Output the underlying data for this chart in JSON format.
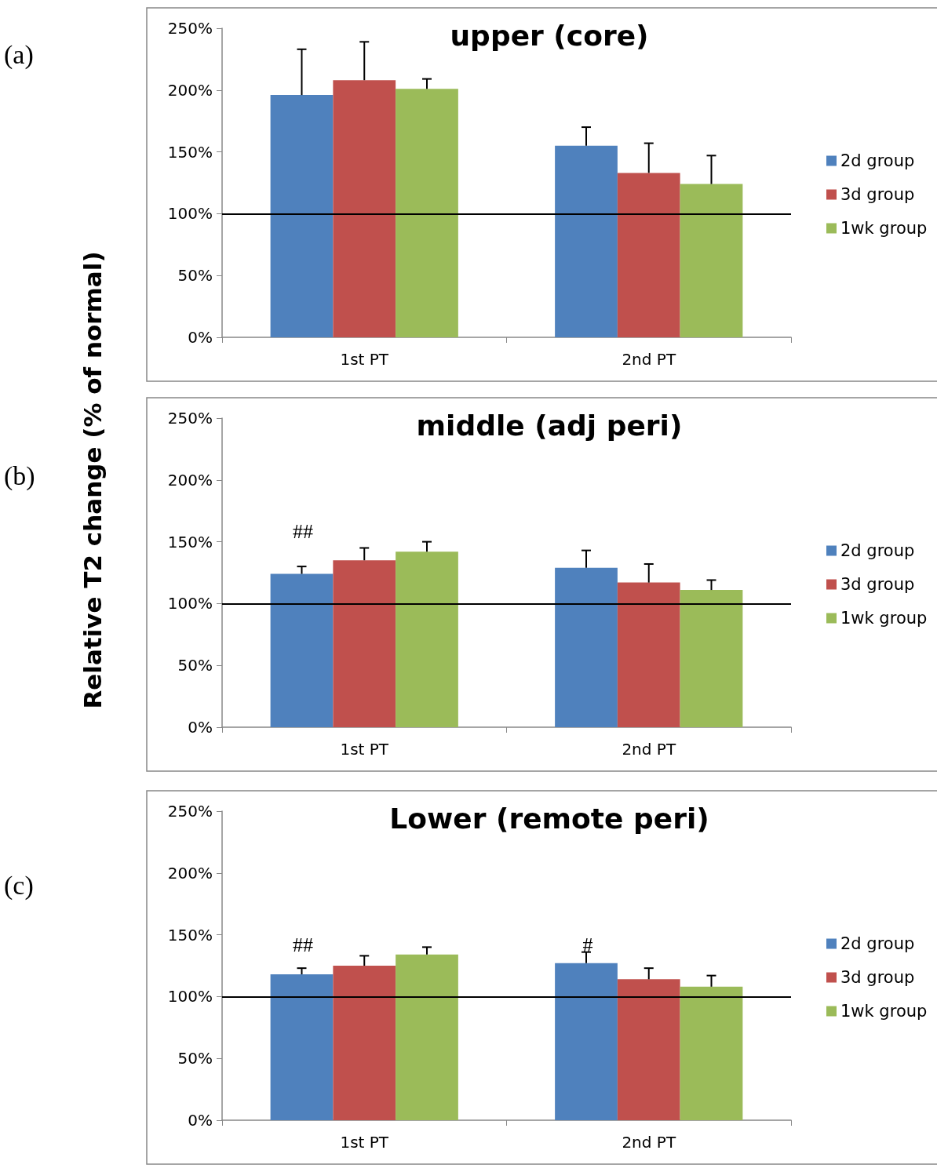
{
  "chart_data": [
    {
      "type": "bar",
      "title": "upper (core)",
      "categories": [
        "1st PT",
        "2nd PT"
      ],
      "series": [
        {
          "name": "2d group",
          "color": "#4f81bd",
          "values": [
            196,
            155
          ],
          "errors": [
            [
              196,
              233
            ],
            [
              155,
              170
            ]
          ]
        },
        {
          "name": "3d group",
          "color": "#c0504d",
          "values": [
            208,
            133
          ],
          "errors": [
            [
              208,
              239
            ],
            [
              133,
              157
            ]
          ]
        },
        {
          "name": "1wk group",
          "color": "#9bbb59",
          "values": [
            201,
            124
          ],
          "errors": [
            [
              201,
              209
            ],
            [
              124,
              147
            ]
          ]
        }
      ],
      "ylim": [
        0,
        250
      ],
      "yticks": [
        {
          "value": 0,
          "label": "0%"
        },
        {
          "value": 50,
          "label": "50%"
        },
        {
          "value": 100,
          "label": "100%"
        },
        {
          "value": 150,
          "label": "150%"
        },
        {
          "value": 200,
          "label": "200%"
        },
        {
          "value": 250,
          "label": "250%"
        }
      ],
      "ref_lines": [
        {
          "axis": "y",
          "value": 100,
          "color": "#000000"
        }
      ],
      "annotations": [
        "(a)"
      ],
      "legend": "right",
      "grid": false
    },
    {
      "type": "bar",
      "title": "middle (adj peri)",
      "ylabel": "Relative T2 change (% of normal)",
      "categories": [
        "1st PT",
        "2nd PT"
      ],
      "series": [
        {
          "name": "2d group",
          "color": "#4f81bd",
          "values": [
            124,
            129
          ],
          "errors": [
            [
              124,
              130
            ],
            [
              129,
              143
            ]
          ]
        },
        {
          "name": "3d group",
          "color": "#c0504d",
          "values": [
            135,
            117
          ],
          "errors": [
            [
              135,
              145
            ],
            [
              117,
              132
            ]
          ]
        },
        {
          "name": "1wk group",
          "color": "#9bbb59",
          "values": [
            142,
            111
          ],
          "errors": [
            [
              142,
              150
            ],
            [
              111,
              119
            ]
          ]
        }
      ],
      "ylim": [
        0,
        250
      ],
      "yticks": [
        {
          "value": 0,
          "label": "0%"
        },
        {
          "value": 50,
          "label": "50%"
        },
        {
          "value": 100,
          "label": "100%"
        },
        {
          "value": 150,
          "label": "150%"
        },
        {
          "value": 200,
          "label": "200%"
        },
        {
          "value": 250,
          "label": "250%"
        }
      ],
      "ref_lines": [
        {
          "axis": "y",
          "value": 100,
          "color": "#000000"
        }
      ],
      "annotations": [
        "(b)",
        "##"
      ],
      "legend": "right",
      "grid": false
    },
    {
      "type": "bar",
      "title": "Lower (remote peri)",
      "categories": [
        "1st PT",
        "2nd PT"
      ],
      "series": [
        {
          "name": "2d group",
          "color": "#4f81bd",
          "values": [
            118,
            127
          ],
          "errors": [
            [
              118,
              123
            ],
            [
              127,
              136
            ]
          ]
        },
        {
          "name": "3d group",
          "color": "#c0504d",
          "values": [
            125,
            114
          ],
          "errors": [
            [
              125,
              133
            ],
            [
              114,
              123
            ]
          ]
        },
        {
          "name": "1wk group",
          "color": "#9bbb59",
          "values": [
            134,
            108
          ],
          "errors": [
            [
              134,
              140
            ],
            [
              108,
              117
            ]
          ]
        }
      ],
      "ylim": [
        0,
        250
      ],
      "yticks": [
        {
          "value": 0,
          "label": "0%"
        },
        {
          "value": 50,
          "label": "50%"
        },
        {
          "value": 100,
          "label": "100%"
        },
        {
          "value": 150,
          "label": "150%"
        },
        {
          "value": 200,
          "label": "200%"
        },
        {
          "value": 250,
          "label": "250%"
        }
      ],
      "ref_lines": [
        {
          "axis": "y",
          "value": 100,
          "color": "#000000"
        }
      ],
      "annotations": [
        "(c)",
        "##",
        "#"
      ],
      "legend": "right",
      "grid": false
    }
  ]
}
